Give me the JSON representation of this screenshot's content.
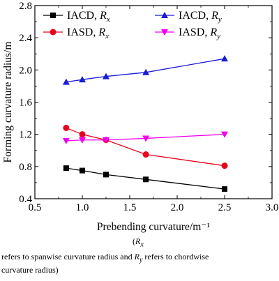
{
  "chart_data": {
    "type": "line",
    "xlabel": "Prebending curvature/m⁻¹",
    "ylabel": "Forming curvature radius/m",
    "xlim": [
      0.5,
      3.0
    ],
    "ylim": [
      0.4,
      2.8
    ],
    "xticks": [
      "0.5",
      "1.0",
      "1.5",
      "2.0",
      "2.5",
      "3.0"
    ],
    "yticks": [
      "0.4",
      "0.8",
      "1.2",
      "1.6",
      "2.0",
      "2.4",
      "2.8"
    ],
    "x": [
      0.83,
      1.0,
      1.25,
      1.67,
      2.5
    ],
    "legend_position": "top",
    "grid": false,
    "series": [
      {
        "name": "IACD, R_x",
        "label_main": "IACD, ",
        "label_var": "R",
        "label_sub": "x",
        "values": [
          0.78,
          0.75,
          0.7,
          0.64,
          0.52
        ],
        "color": "#000000",
        "marker": "square"
      },
      {
        "name": "IASD, R_x",
        "label_main": "IASD, ",
        "label_var": "R",
        "label_sub": "x",
        "values": [
          1.28,
          1.2,
          1.13,
          0.95,
          0.81
        ],
        "color": "#e8001c",
        "marker": "circle"
      },
      {
        "name": "IACD, R_y",
        "label_main": "IACD, ",
        "label_var": "R",
        "label_sub": "y",
        "values": [
          1.85,
          1.88,
          1.92,
          1.97,
          2.14
        ],
        "color": "#1b1bd6",
        "marker": "triangle-up"
      },
      {
        "name": "IASD, R_y",
        "label_main": "IASD, ",
        "label_var": "R",
        "label_sub": "y",
        "values": [
          1.12,
          1.13,
          1.13,
          1.15,
          1.2
        ],
        "color": "#f000f0",
        "marker": "triangle-down"
      }
    ]
  },
  "caption": {
    "line1_open": "(",
    "line1_var": "R",
    "line1_sub": "x",
    "line2_a": "refers to spanwise curvature radius and ",
    "line2_var": "R",
    "line2_sub": "y",
    "line2_b": " refers to chordwise",
    "line3": "curvature radius)"
  }
}
